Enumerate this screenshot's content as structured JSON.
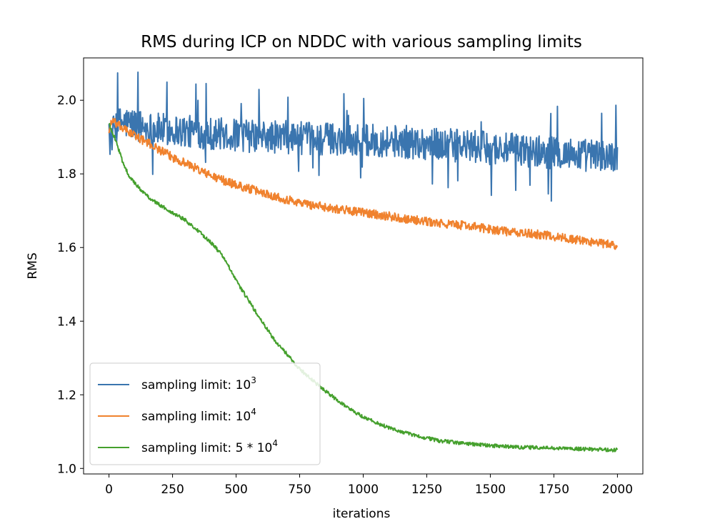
{
  "chart_data": {
    "type": "line",
    "title": "RMS during ICP on NDDC with various sampling limits",
    "xlabel": "iterations",
    "ylabel": "RMS",
    "xlim": [
      -100,
      2100
    ],
    "ylim": [
      0.985,
      2.115
    ],
    "xticks": [
      0,
      250,
      500,
      750,
      1000,
      1250,
      1500,
      1750,
      2000
    ],
    "yticks": [
      1.0,
      1.2,
      1.4,
      1.6,
      1.8,
      2.0
    ],
    "xtick_labels": [
      "0",
      "250",
      "500",
      "750",
      "1000",
      "1250",
      "1500",
      "1750",
      "2000"
    ],
    "ytick_labels": [
      "1.0",
      "1.2",
      "1.4",
      "1.6",
      "1.8",
      "2.0"
    ],
    "grid": false,
    "legend_position": "lower-left",
    "series": [
      {
        "label_main": "sampling limit: 10",
        "label_sup": "3",
        "color": "#3a75af",
        "noise": 0.045,
        "x": [
          0,
          25,
          50,
          100,
          150,
          200,
          250,
          300,
          400,
          500,
          600,
          700,
          800,
          900,
          1000,
          1100,
          1200,
          1300,
          1400,
          1500,
          1600,
          1700,
          1800,
          1900,
          2000
        ],
        "y": [
          1.88,
          1.93,
          1.94,
          1.935,
          1.925,
          1.92,
          1.92,
          1.915,
          1.91,
          1.905,
          1.9,
          1.9,
          1.895,
          1.895,
          1.89,
          1.89,
          1.885,
          1.88,
          1.875,
          1.87,
          1.865,
          1.86,
          1.855,
          1.85,
          1.845
        ]
      },
      {
        "label_main": "sampling limit: 10",
        "label_sup": "4",
        "color": "#f0822e",
        "noise": 0.012,
        "x": [
          0,
          10,
          50,
          100,
          150,
          200,
          250,
          300,
          400,
          500,
          600,
          700,
          800,
          900,
          1000,
          1100,
          1200,
          1300,
          1400,
          1500,
          1600,
          1700,
          1800,
          1900,
          2000
        ],
        "y": [
          1.915,
          1.945,
          1.925,
          1.905,
          1.885,
          1.865,
          1.845,
          1.83,
          1.795,
          1.77,
          1.75,
          1.73,
          1.715,
          1.705,
          1.695,
          1.685,
          1.675,
          1.665,
          1.66,
          1.65,
          1.64,
          1.635,
          1.625,
          1.615,
          1.605
        ]
      },
      {
        "label_main": "sampling limit: 5 * 10",
        "label_sup": "4",
        "color": "#45a02d",
        "noise": 0.005,
        "x": [
          0,
          25,
          50,
          75,
          100,
          150,
          200,
          250,
          300,
          350,
          400,
          450,
          500,
          550,
          600,
          650,
          700,
          750,
          800,
          850,
          900,
          950,
          1000,
          1100,
          1200,
          1300,
          1400,
          1500,
          1600,
          1700,
          1800,
          1900,
          2000
        ],
        "y": [
          1.935,
          1.895,
          1.84,
          1.8,
          1.775,
          1.74,
          1.715,
          1.695,
          1.675,
          1.645,
          1.615,
          1.575,
          1.51,
          1.455,
          1.4,
          1.35,
          1.31,
          1.27,
          1.24,
          1.21,
          1.185,
          1.16,
          1.14,
          1.11,
          1.09,
          1.075,
          1.068,
          1.062,
          1.058,
          1.056,
          1.054,
          1.052,
          1.05
        ]
      }
    ]
  }
}
